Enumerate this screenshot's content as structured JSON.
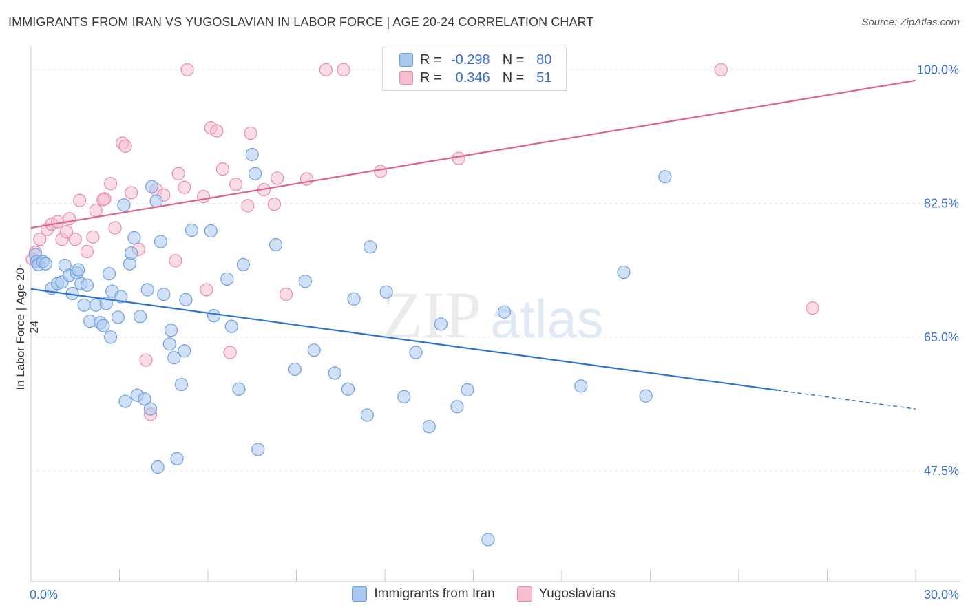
{
  "title": "IMMIGRANTS FROM IRAN VS YUGOSLAVIAN IN LABOR FORCE | AGE 20-24 CORRELATION CHART",
  "source": "Source: ZipAtlas.com",
  "watermark": {
    "zip": "ZIP",
    "atlas": "atlas"
  },
  "legend_top": {
    "rows": [
      {
        "r_label": "R =",
        "r_value": "-0.298",
        "n_label": "N =",
        "n_value": "80"
      },
      {
        "r_label": "R =",
        "r_value": "0.346",
        "n_label": "N =",
        "n_value": "51"
      }
    ]
  },
  "colors": {
    "blue_fill": "#a9c8f0",
    "blue_stroke": "#6d9fdc",
    "blue_line": "#2f73d1",
    "pink_fill": "#f6bfd1",
    "pink_stroke": "#e88aa9",
    "pink_line": "#e0628c",
    "tick_label": "#3a6fd0",
    "grid": "#e6e6e6"
  },
  "chart_data": {
    "type": "scatter",
    "xlabel": "",
    "ylabel": "In Labor Force | Age 20-24",
    "xlim": [
      0,
      30
    ],
    "ylim": [
      33,
      103
    ],
    "x_tick_labels": [
      "0.0%",
      "30.0%"
    ],
    "y_ticks": [
      47.5,
      65.0,
      82.5,
      100.0
    ],
    "y_tick_labels": [
      "47.5%",
      "65.0%",
      "82.5%",
      "100.0%"
    ],
    "grid": true,
    "legend_placement": "bottom-center",
    "series": [
      {
        "name": "Immigrants from Iran",
        "color": "#a9c8f0",
        "trend": {
          "x0": 0,
          "y0": 71.3,
          "x1": 30,
          "y1": 55.6,
          "solid_until": 25.3
        },
        "points": [
          [
            0.15,
            75.8
          ],
          [
            0.2,
            74.9
          ],
          [
            0.25,
            74.5
          ],
          [
            0.4,
            74.9
          ],
          [
            0.5,
            74.6
          ],
          [
            0.7,
            71.4
          ],
          [
            0.9,
            72.0
          ],
          [
            1.05,
            72.2
          ],
          [
            1.15,
            74.4
          ],
          [
            1.3,
            73.1
          ],
          [
            1.4,
            70.7
          ],
          [
            1.55,
            73.4
          ],
          [
            1.6,
            73.8
          ],
          [
            1.7,
            72.0
          ],
          [
            1.8,
            69.2
          ],
          [
            1.9,
            71.8
          ],
          [
            2.0,
            67.1
          ],
          [
            2.2,
            69.2
          ],
          [
            2.35,
            66.9
          ],
          [
            2.45,
            66.5
          ],
          [
            2.55,
            69.4
          ],
          [
            2.65,
            73.3
          ],
          [
            2.75,
            71.0
          ],
          [
            2.95,
            67.6
          ],
          [
            3.05,
            70.3
          ],
          [
            3.15,
            82.3
          ],
          [
            3.2,
            56.6
          ],
          [
            3.35,
            74.6
          ],
          [
            3.5,
            78.0
          ],
          [
            3.6,
            57.4
          ],
          [
            3.7,
            67.7
          ],
          [
            3.85,
            56.9
          ],
          [
            3.95,
            71.2
          ],
          [
            4.05,
            55.6
          ],
          [
            4.1,
            84.7
          ],
          [
            4.25,
            82.8
          ],
          [
            4.3,
            48.0
          ],
          [
            4.4,
            77.5
          ],
          [
            4.5,
            70.6
          ],
          [
            4.7,
            64.1
          ],
          [
            4.75,
            65.9
          ],
          [
            4.85,
            62.3
          ],
          [
            4.95,
            49.1
          ],
          [
            5.1,
            58.8
          ],
          [
            5.2,
            63.2
          ],
          [
            5.25,
            69.9
          ],
          [
            5.45,
            79.0
          ],
          [
            6.2,
            67.8
          ],
          [
            6.65,
            72.6
          ],
          [
            6.8,
            66.4
          ],
          [
            7.05,
            58.2
          ],
          [
            7.2,
            74.5
          ],
          [
            7.5,
            88.9
          ],
          [
            7.6,
            86.4
          ],
          [
            7.7,
            50.3
          ],
          [
            8.3,
            77.1
          ],
          [
            8.95,
            60.8
          ],
          [
            9.3,
            72.3
          ],
          [
            9.6,
            63.3
          ],
          [
            10.3,
            60.3
          ],
          [
            10.75,
            58.2
          ],
          [
            10.95,
            70.0
          ],
          [
            11.4,
            54.8
          ],
          [
            11.5,
            76.8
          ],
          [
            12.05,
            70.9
          ],
          [
            12.65,
            57.2
          ],
          [
            13.05,
            63.0
          ],
          [
            13.5,
            53.3
          ],
          [
            13.9,
            66.7
          ],
          [
            14.45,
            55.9
          ],
          [
            14.8,
            58.1
          ],
          [
            16.05,
            68.3
          ],
          [
            18.65,
            58.6
          ],
          [
            20.1,
            73.5
          ],
          [
            20.85,
            57.3
          ],
          [
            21.5,
            86.0
          ],
          [
            15.5,
            38.5
          ],
          [
            3.4,
            76.0
          ],
          [
            6.1,
            78.9
          ],
          [
            2.7,
            65.0
          ]
        ]
      },
      {
        "name": "Yugoslavians",
        "color": "#f6bfd1",
        "trend": {
          "x0": 0,
          "y0": 79.3,
          "x1": 30,
          "y1": 98.6
        },
        "points": [
          [
            0.15,
            76.1
          ],
          [
            0.3,
            77.8
          ],
          [
            0.55,
            79.1
          ],
          [
            0.7,
            79.8
          ],
          [
            0.9,
            80.1
          ],
          [
            1.05,
            77.8
          ],
          [
            1.2,
            78.8
          ],
          [
            1.5,
            77.8
          ],
          [
            1.65,
            82.9
          ],
          [
            1.9,
            76.2
          ],
          [
            2.1,
            78.1
          ],
          [
            2.2,
            81.6
          ],
          [
            2.5,
            83.1
          ],
          [
            2.7,
            85.1
          ],
          [
            2.85,
            79.3
          ],
          [
            3.1,
            90.4
          ],
          [
            3.2,
            90.0
          ],
          [
            3.4,
            83.9
          ],
          [
            3.65,
            76.5
          ],
          [
            3.9,
            62.0
          ],
          [
            4.05,
            54.9
          ],
          [
            4.25,
            84.3
          ],
          [
            4.5,
            83.6
          ],
          [
            4.9,
            75.0
          ],
          [
            5.0,
            86.4
          ],
          [
            5.2,
            84.6
          ],
          [
            5.3,
            100.0
          ],
          [
            5.85,
            83.4
          ],
          [
            5.95,
            71.2
          ],
          [
            6.1,
            92.4
          ],
          [
            6.3,
            92.0
          ],
          [
            6.5,
            87.0
          ],
          [
            6.75,
            63.0
          ],
          [
            6.95,
            85.0
          ],
          [
            7.35,
            82.2
          ],
          [
            7.45,
            91.7
          ],
          [
            7.9,
            84.3
          ],
          [
            8.25,
            82.4
          ],
          [
            8.35,
            85.8
          ],
          [
            8.65,
            70.6
          ],
          [
            9.35,
            85.7
          ],
          [
            10.0,
            100.0
          ],
          [
            10.6,
            100.0
          ],
          [
            11.85,
            86.7
          ],
          [
            13.3,
            100.0
          ],
          [
            14.5,
            88.4
          ],
          [
            23.4,
            100.0
          ],
          [
            26.5,
            68.8
          ],
          [
            1.3,
            80.5
          ],
          [
            0.05,
            75.2
          ],
          [
            2.45,
            83.0
          ]
        ]
      }
    ]
  }
}
